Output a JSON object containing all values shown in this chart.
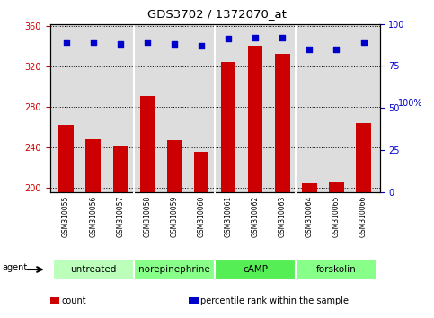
{
  "title": "GDS3702 / 1372070_at",
  "samples": [
    "GSM310055",
    "GSM310056",
    "GSM310057",
    "GSM310058",
    "GSM310059",
    "GSM310060",
    "GSM310061",
    "GSM310062",
    "GSM310063",
    "GSM310064",
    "GSM310065",
    "GSM310066"
  ],
  "counts": [
    262,
    248,
    241,
    290,
    247,
    235,
    324,
    340,
    332,
    204,
    205,
    264
  ],
  "percentiles": [
    89,
    89,
    88,
    89,
    88,
    87,
    91,
    92,
    92,
    85,
    85,
    89
  ],
  "groups": [
    {
      "label": "untreated",
      "start": 0,
      "end": 3,
      "color": "#bbffbb"
    },
    {
      "label": "norepinephrine",
      "start": 3,
      "end": 6,
      "color": "#88ff88"
    },
    {
      "label": "cAMP",
      "start": 6,
      "end": 9,
      "color": "#55ee55"
    },
    {
      "label": "forskolin",
      "start": 9,
      "end": 12,
      "color": "#88ff88"
    }
  ],
  "ylim_left": [
    195,
    362
  ],
  "ylim_right": [
    0,
    100
  ],
  "yticks_left": [
    200,
    240,
    280,
    320,
    360
  ],
  "yticks_right": [
    0,
    25,
    50,
    75,
    100
  ],
  "bar_color": "#cc0000",
  "dot_color": "#0000cc",
  "bar_bottom": 195,
  "bar_width": 0.55,
  "legend": [
    {
      "label": "count",
      "color": "#cc0000"
    },
    {
      "label": "percentile rank within the sample",
      "color": "#0000cc"
    }
  ],
  "background_color": "#ffffff",
  "plot_bg_color": "#dddddd",
  "xticklabel_bg": "#cccccc"
}
